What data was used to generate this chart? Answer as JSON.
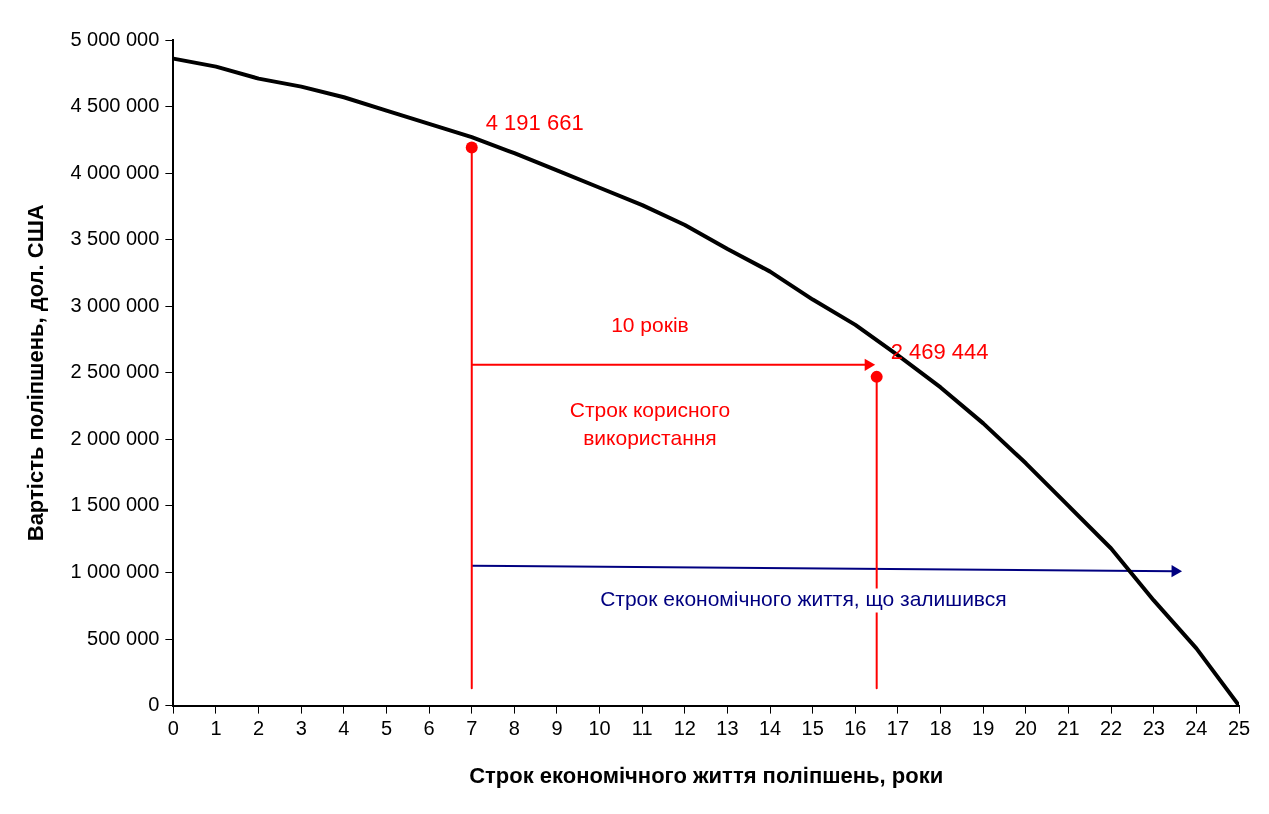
{
  "chart_data": {
    "type": "line",
    "xlabel": "Строк економічного життя поліпшень, роки",
    "ylabel": "Вартість поліпшень, дол. США",
    "xlim": [
      0,
      25
    ],
    "xticks": [
      0,
      1,
      2,
      3,
      4,
      5,
      6,
      7,
      8,
      9,
      10,
      11,
      12,
      13,
      14,
      15,
      16,
      17,
      18,
      19,
      20,
      21,
      22,
      23,
      24,
      25
    ],
    "ylim": [
      0,
      5000000
    ],
    "yticks": [
      {
        "value": 0,
        "label": "0"
      },
      {
        "value": 500000,
        "label": "500 000"
      },
      {
        "value": 1000000,
        "label": "1 000 000"
      },
      {
        "value": 1500000,
        "label": "1 500 000"
      },
      {
        "value": 2000000,
        "label": "2 000 000"
      },
      {
        "value": 2500000,
        "label": "2 500 000"
      },
      {
        "value": 3000000,
        "label": "3 000 000"
      },
      {
        "value": 3500000,
        "label": "3 500 000"
      },
      {
        "value": 4000000,
        "label": "4 000 000"
      },
      {
        "value": 4500000,
        "label": "4 500 000"
      },
      {
        "value": 5000000,
        "label": "5 000 000"
      }
    ],
    "grid": false,
    "legend": false,
    "series": [
      {
        "color": "#000000",
        "marker": "none",
        "x": [
          0,
          1,
          2,
          3,
          4,
          5,
          6,
          7,
          8,
          9,
          10,
          11,
          12,
          13,
          14,
          15,
          16,
          17,
          18,
          19,
          20,
          21,
          22,
          23,
          24,
          25
        ],
        "values": [
          4860000,
          4800000,
          4710000,
          4650000,
          4570000,
          4470000,
          4370000,
          4270000,
          4150000,
          4020000,
          3890000,
          3760000,
          3610000,
          3430000,
          3260000,
          3050000,
          2860000,
          2630000,
          2390000,
          2120000,
          1820000,
          1500000,
          1180000,
          790000,
          430000,
          0
        ]
      },
      {
        "type": "line",
        "color": "#ff0000",
        "marker": "none",
        "x": [
          7,
          7
        ],
        "values": [
          4190000,
          130000
        ]
      },
      {
        "type": "line",
        "color": "#ff0000",
        "marker": "none",
        "x": [
          16.5,
          16.5
        ],
        "values": [
          2470000,
          130000
        ]
      },
      {
        "type": "line",
        "color": "#ff0000",
        "marker": "triangle",
        "x": [
          7,
          16.3
        ],
        "values": [
          2560000,
          2560000
        ]
      },
      {
        "type": "line",
        "color": "#000080",
        "marker": "triangle",
        "x": [
          7,
          23.5
        ],
        "values": [
          1050000,
          1010000
        ]
      },
      {
        "type": "scatter",
        "color": "#ff0000",
        "marker": "circle",
        "x": [
          7,
          16.5
        ],
        "values": [
          4191661,
          2469444
        ],
        "value_labels": [
          "4 191 661",
          "2 469 444"
        ]
      }
    ],
    "annotations": [
      "10 років",
      "Строк корисного\nвикористання",
      "Строк економічного життя, що залишився"
    ]
  }
}
